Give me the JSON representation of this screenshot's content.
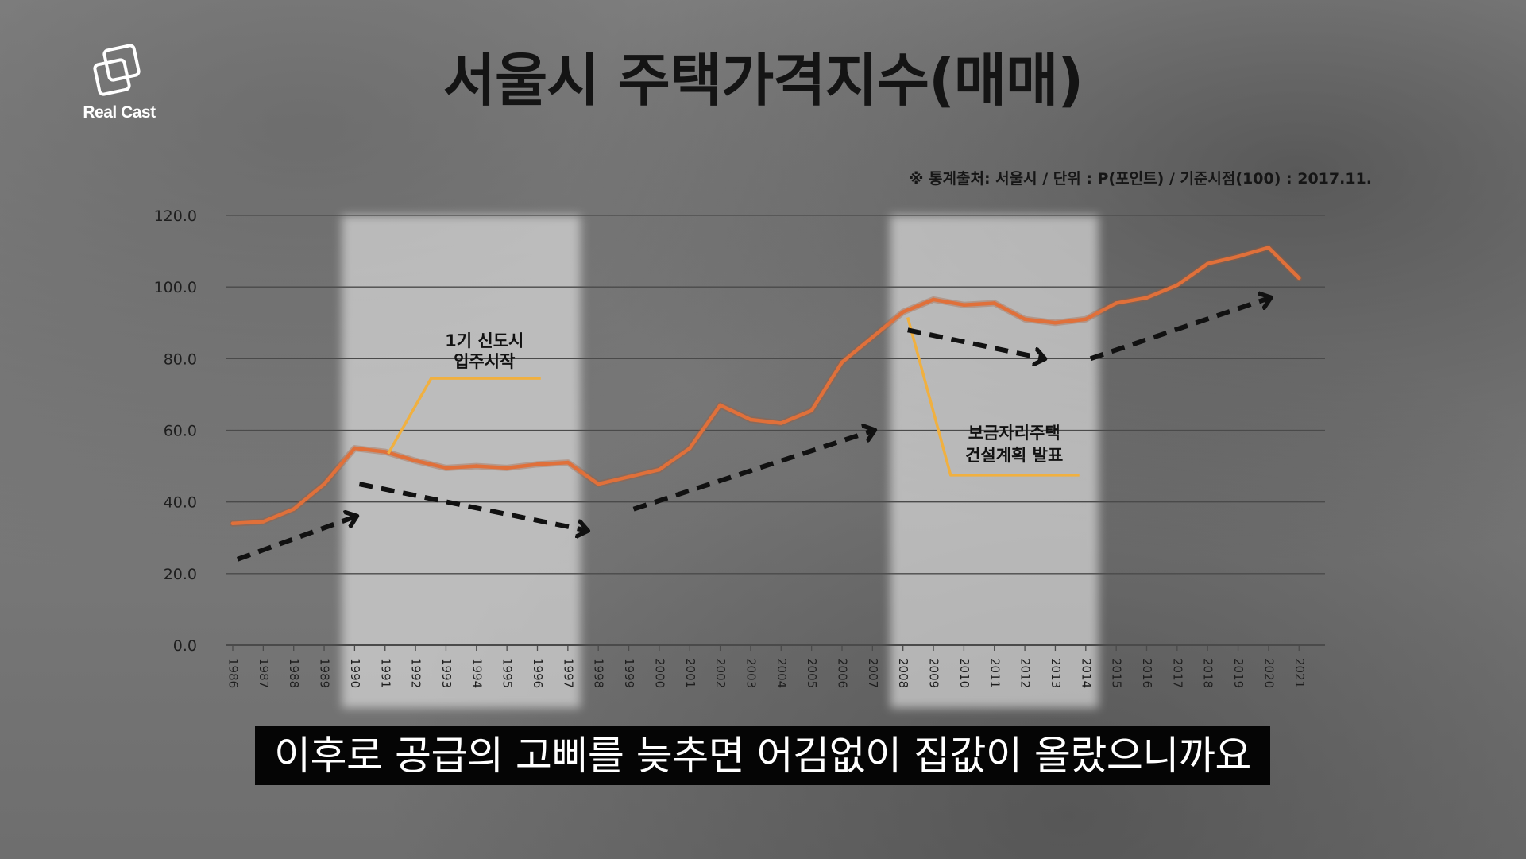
{
  "logo": {
    "text": "Real Cast",
    "icon": "overlapping-squares-logo"
  },
  "title": "서울시 주택가격지수(매매)",
  "source_note": "※ 통계출처: 서울시 / 단위 : P(포인트) / 기준시점(100) : 2017.11.",
  "subtitle": "이후로 공급의 고삐를 늦추면 어김없이 집값이 올랐으니까요",
  "colors": {
    "line": "#e0703a",
    "annotation": "#f0b040",
    "arrow": "#111111",
    "grid": "#4a4a4a",
    "highlight": "#e8e8e8"
  },
  "chart_data": {
    "type": "line",
    "title": "서울시 주택가격지수(매매)",
    "xlabel": "",
    "ylabel": "",
    "ylim": [
      0,
      120
    ],
    "yticks": [
      "0.0",
      "20.0",
      "40.0",
      "60.0",
      "80.0",
      "100.0",
      "120.0"
    ],
    "grid": true,
    "categories": [
      "1986",
      "1987",
      "1988",
      "1989",
      "1990",
      "1991",
      "1992",
      "1993",
      "1994",
      "1995",
      "1996",
      "1997",
      "1998",
      "1999",
      "2000",
      "2001",
      "2002",
      "2003",
      "2004",
      "2005",
      "2006",
      "2007",
      "2008",
      "2009",
      "2010",
      "2011",
      "2012",
      "2013",
      "2014",
      "2015",
      "2016",
      "2017",
      "2018",
      "2019",
      "2020",
      "2021"
    ],
    "values": [
      34.0,
      34.5,
      38.0,
      45.0,
      55.0,
      54.0,
      51.5,
      49.5,
      50.0,
      49.5,
      50.5,
      51.0,
      45.0,
      47.0,
      49.0,
      55.0,
      67.0,
      63.0,
      62.0,
      65.5,
      79.0,
      86.0,
      93.0,
      96.5,
      95.0,
      95.5,
      91.0,
      90.0,
      91.0,
      95.5,
      97.0,
      100.5,
      106.5,
      108.5,
      111.0,
      102.5
    ],
    "highlight_periods": [
      {
        "start": "1990",
        "end": "1997"
      },
      {
        "start": "2008",
        "end": "2014"
      }
    ],
    "annotations": [
      {
        "text_lines": [
          "1기 신도시",
          "입주시작"
        ],
        "at": "1991"
      },
      {
        "text_lines": [
          "보금자리주택",
          "건설계획 발표"
        ],
        "at": "2008"
      }
    ],
    "trend_arrows": [
      {
        "from": [
          "1986",
          24
        ],
        "to": [
          "1990",
          36
        ],
        "direction": "up"
      },
      {
        "from": [
          "1990",
          45
        ],
        "to": [
          "1998",
          32
        ],
        "direction": "down"
      },
      {
        "from": [
          "1999",
          38
        ],
        "to": [
          "2007",
          60
        ],
        "direction": "up"
      },
      {
        "from": [
          "2008",
          88
        ],
        "to": [
          "2013",
          80
        ],
        "direction": "down"
      },
      {
        "from": [
          "2014",
          80
        ],
        "to": [
          "2020",
          97
        ],
        "direction": "up"
      }
    ]
  }
}
